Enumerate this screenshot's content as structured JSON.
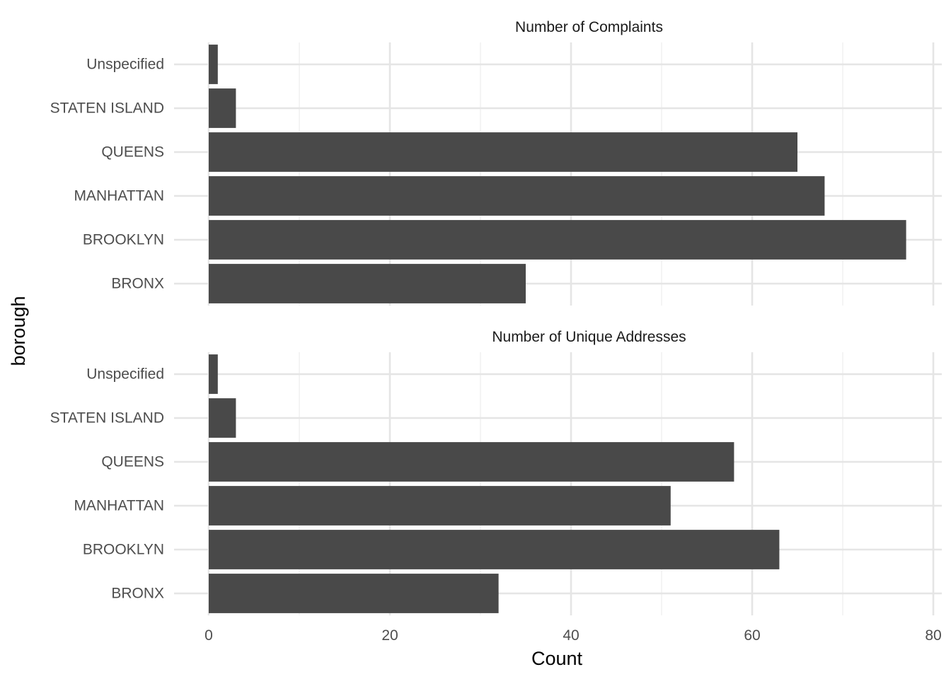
{
  "chart_data": {
    "type": "bar",
    "orientation": "horizontal",
    "xlabel": "Count",
    "ylabel": "borough",
    "xlim": [
      0,
      80
    ],
    "x_ticks": [
      0,
      20,
      40,
      60,
      80
    ],
    "x_tick_labels": [
      "0",
      "20",
      "40",
      "60",
      "80"
    ],
    "categories": [
      "Unspecified",
      "STATEN ISLAND",
      "QUEENS",
      "MANHATTAN",
      "BROOKLYN",
      "BRONX"
    ],
    "grid": true,
    "bar_color": "#494949",
    "facets": [
      {
        "title": "Number of Complaints",
        "values": [
          1,
          3,
          65,
          68,
          77,
          35
        ]
      },
      {
        "title": "Number of Unique Addresses",
        "values": [
          1,
          3,
          58,
          51,
          63,
          32
        ]
      }
    ]
  }
}
